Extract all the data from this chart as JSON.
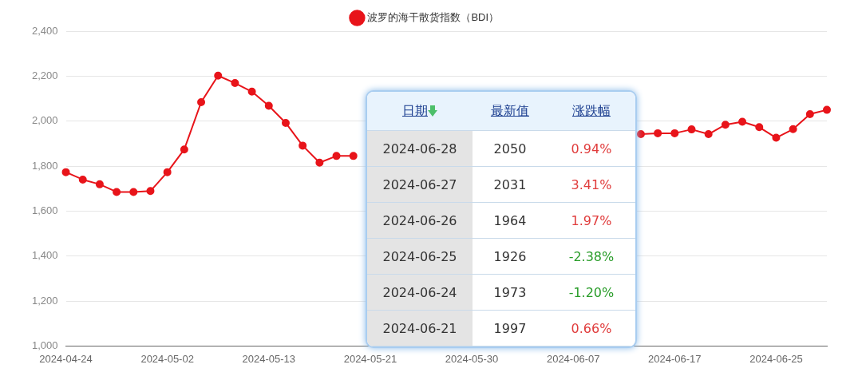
{
  "chart_data": {
    "type": "line",
    "categories": [
      "2024-04-24",
      null,
      null,
      null,
      null,
      null,
      "2024-05-02",
      null,
      null,
      null,
      null,
      null,
      "2024-05-13",
      null,
      null,
      null,
      null,
      null,
      "2024-05-21",
      null,
      null,
      null,
      null,
      null,
      "2024-05-30",
      null,
      null,
      null,
      null,
      null,
      "2024-06-07",
      null,
      null,
      null,
      null,
      null,
      "2024-06-17",
      null,
      null,
      null,
      null,
      null,
      "2024-06-25",
      null,
      null,
      null
    ],
    "series": [
      {
        "name": "波罗的海干散货指数（BDI）",
        "color": "#e8141a",
        "values": [
          1773,
          1740,
          1719,
          1685,
          1685,
          1689,
          1773,
          1874,
          2084,
          2202,
          2169,
          2131,
          2068,
          1992,
          1891,
          1815,
          1845,
          1845,
          null,
          null,
          null,
          null,
          null,
          null,
          null,
          null,
          null,
          null,
          null,
          null,
          null,
          null,
          null,
          null,
          1942,
          1946,
          1946,
          1963,
          1942,
          1984,
          1997,
          1973,
          1926,
          1964,
          2031,
          2050
        ]
      }
    ],
    "ylim": [
      1000,
      2400
    ],
    "yticks": [
      {
        "value": 1000,
        "label": "1,000"
      },
      {
        "value": 1200,
        "label": "1,200"
      },
      {
        "value": 1400,
        "label": "1,400"
      },
      {
        "value": 1600,
        "label": "1,600"
      },
      {
        "value": 1800,
        "label": "1,800"
      },
      {
        "value": 2000,
        "label": "2,000"
      },
      {
        "value": 2200,
        "label": "2,200"
      },
      {
        "value": 2400,
        "label": "2,400"
      }
    ],
    "grid": "y",
    "legend": "top",
    "marker": "circle",
    "line_style": "solid",
    "annotations": [
      "日期",
      "最新值",
      "涨跌幅",
      "2024-06-28",
      "2050",
      "0.94%",
      "2024-06-27",
      "2031",
      "3.41%",
      "2024-06-26",
      "1964",
      "1.97%",
      "2024-06-25",
      "1926",
      "-2.38%",
      "2024-06-24",
      "1973",
      "-1.20%",
      "2024-06-21",
      "1997",
      "0.66%"
    ]
  }
}
